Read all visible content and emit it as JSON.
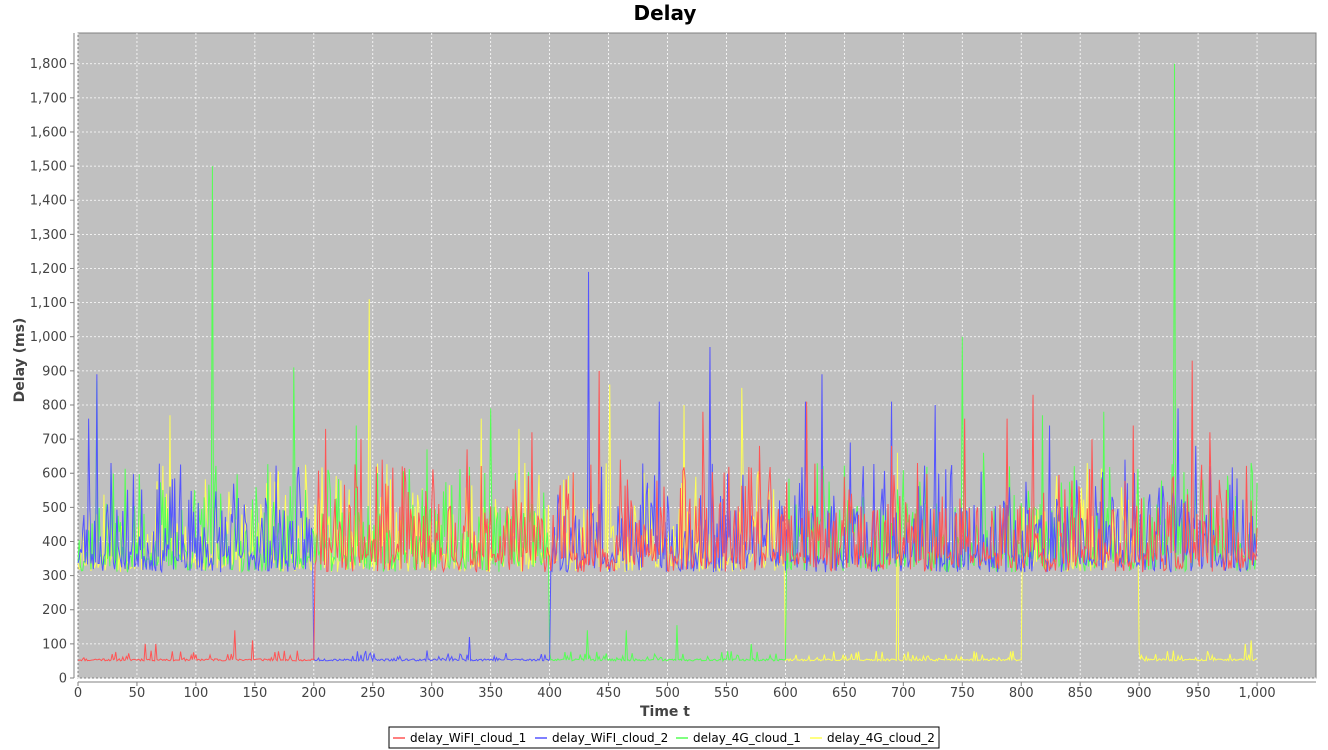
{
  "chart_data": {
    "type": "line",
    "title": "Delay",
    "xlabel": "Time t",
    "ylabel": "Delay (ms)",
    "xlim": [
      0,
      1050
    ],
    "ylim": [
      0,
      1890
    ],
    "x_ticks": [
      0,
      50,
      100,
      150,
      200,
      250,
      300,
      350,
      400,
      450,
      500,
      550,
      600,
      650,
      700,
      750,
      800,
      850,
      900,
      950,
      1000
    ],
    "x_tick_labels": [
      "0",
      "50",
      "100",
      "150",
      "200",
      "250",
      "300",
      "350",
      "400",
      "450",
      "500",
      "550",
      "600",
      "650",
      "700",
      "750",
      "800",
      "850",
      "900",
      "950",
      "1,000"
    ],
    "y_ticks": [
      0,
      100,
      200,
      300,
      400,
      500,
      600,
      700,
      800,
      900,
      1000,
      1100,
      1200,
      1300,
      1400,
      1500,
      1600,
      1700,
      1800
    ],
    "y_tick_labels": [
      "0",
      "100",
      "200",
      "300",
      "400",
      "500",
      "600",
      "700",
      "800",
      "900",
      "1,000",
      "1,100",
      "1,200",
      "1,300",
      "1,400",
      "1,500",
      "1,600",
      "1,700",
      "1,800"
    ],
    "grid": true,
    "background": "#c0c0c0",
    "legend_position": "bottom-center",
    "series": [
      {
        "name": "delay_WiFI_cloud_1",
        "color": "#ff5555",
        "low_segments": [
          [
            0,
            200
          ]
        ],
        "base_low": 50,
        "base_high": 310,
        "peaks": [
          [
            133,
            140
          ],
          [
            57,
            100
          ],
          [
            66,
            100
          ],
          [
            148,
            110
          ],
          [
            210,
            730
          ],
          [
            240,
            700
          ],
          [
            258,
            640
          ],
          [
            275,
            620
          ],
          [
            330,
            670
          ],
          [
            385,
            720
          ],
          [
            442,
            900
          ],
          [
            460,
            640
          ],
          [
            530,
            780
          ],
          [
            578,
            680
          ],
          [
            618,
            810
          ],
          [
            690,
            680
          ],
          [
            752,
            760
          ],
          [
            788,
            760
          ],
          [
            810,
            830
          ],
          [
            860,
            700
          ],
          [
            895,
            740
          ],
          [
            945,
            930
          ],
          [
            960,
            720
          ],
          [
            995,
            520
          ]
        ],
        "seed": 11
      },
      {
        "name": "delay_WiFI_cloud_2",
        "color": "#5555ff",
        "low_segments": [
          [
            200,
            400
          ]
        ],
        "base_low": 50,
        "base_high": 310,
        "peaks": [
          [
            9,
            760
          ],
          [
            16,
            890
          ],
          [
            28,
            630
          ],
          [
            332,
            120
          ],
          [
            433,
            1190
          ],
          [
            493,
            810
          ],
          [
            536,
            970
          ],
          [
            617,
            810
          ],
          [
            631,
            890
          ],
          [
            655,
            690
          ],
          [
            690,
            810
          ],
          [
            727,
            800
          ],
          [
            824,
            740
          ],
          [
            888,
            640
          ],
          [
            933,
            790
          ],
          [
            948,
            680
          ]
        ],
        "seed": 23
      },
      {
        "name": "delay_4G_cloud_1",
        "color": "#55ff55",
        "low_segments": [
          [
            400,
            600
          ]
        ],
        "base_low": 50,
        "base_high": 310,
        "peaks": [
          [
            16,
            870
          ],
          [
            114,
            1500
          ],
          [
            183,
            910
          ],
          [
            236,
            740
          ],
          [
            296,
            670
          ],
          [
            350,
            790
          ],
          [
            432,
            140
          ],
          [
            465,
            140
          ],
          [
            508,
            155
          ],
          [
            571,
            100
          ],
          [
            750,
            1000
          ],
          [
            768,
            660
          ],
          [
            818,
            770
          ],
          [
            870,
            780
          ],
          [
            930,
            1800
          ],
          [
            995,
            630
          ]
        ],
        "seed": 37
      },
      {
        "name": "delay_4G_cloud_2",
        "color": "#ffff55",
        "low_segments": [
          [
            600,
            800
          ],
          [
            900,
            1000
          ]
        ],
        "base_low": 50,
        "base_high": 310,
        "peaks": [
          [
            78,
            770
          ],
          [
            247,
            1110
          ],
          [
            342,
            760
          ],
          [
            374,
            730
          ],
          [
            451,
            860
          ],
          [
            514,
            800
          ],
          [
            563,
            850
          ],
          [
            695,
            660
          ],
          [
            856,
            630
          ],
          [
            990,
            100
          ],
          [
            995,
            110
          ]
        ],
        "seed": 53
      }
    ]
  }
}
